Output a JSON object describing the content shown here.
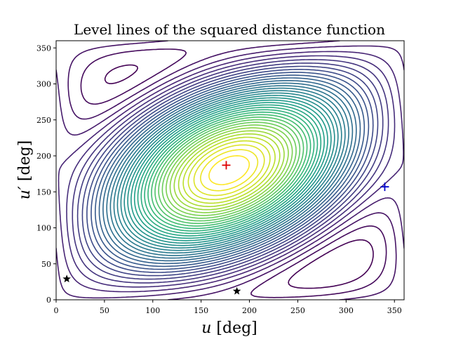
{
  "chart_data": {
    "type": "contour",
    "title": "Level lines of the squared distance function",
    "xlabel": "u [deg]",
    "ylabel": "u′ [deg]",
    "xlim": [
      0,
      360
    ],
    "ylim": [
      0,
      360
    ],
    "xticks": [
      "0",
      "50",
      "100",
      "150",
      "200",
      "250",
      "300",
      "350"
    ],
    "yticks": [
      "0",
      "50",
      "100",
      "150",
      "200",
      "250",
      "300",
      "350"
    ],
    "colormap": "viridis",
    "grid": false,
    "markers": [
      {
        "label": "maximum",
        "shape": "plus",
        "color": "#dd0000",
        "x": 176,
        "y": 187
      },
      {
        "label": "saddle",
        "shape": "plus",
        "color": "#0000cc",
        "x": 340,
        "y": 157
      },
      {
        "label": "minimum",
        "shape": "star",
        "color": "#000000",
        "x": 11,
        "y": 29
      },
      {
        "label": "minimum",
        "shape": "star",
        "color": "#000000",
        "x": 187,
        "y": 12
      }
    ]
  }
}
